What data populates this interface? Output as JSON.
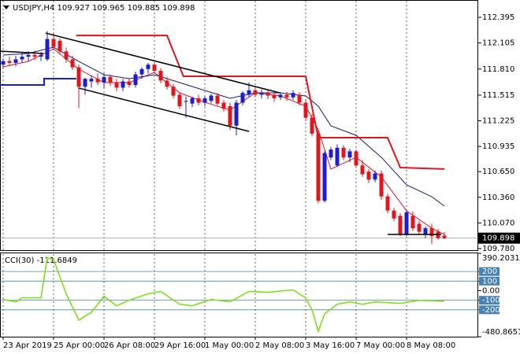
{
  "chart_data": [
    {
      "type": "candlestick",
      "symbol": "USDJPY,H4",
      "up_color": "#1c1cd6",
      "down_color": "#e3141c",
      "xlim": [
        -0.5,
        75.375
      ],
      "ylim": [
        109.762,
        112.591
      ],
      "yticks": [
        112.395,
        112.105,
        {
          "value": 111.81,
          "label": "111.810"
        },
        111.515,
        111.225,
        110.935,
        {
          "value": 110.65,
          "label": "110.650"
        },
        {
          "value": 110.36,
          "label": "110.360"
        },
        {
          "value": 110.07,
          "label": "110.070"
        },
        {
          "value": 109.78,
          "label": "109.780"
        }
      ],
      "ohlc": [
        [
          111.86,
          111.93,
          111.82,
          111.9
        ],
        [
          111.9,
          111.95,
          111.85,
          111.88
        ],
        [
          111.88,
          111.96,
          111.84,
          111.92
        ],
        [
          111.92,
          111.99,
          111.88,
          111.95
        ],
        [
          111.95,
          112.01,
          111.9,
          111.97
        ],
        [
          111.97,
          112.02,
          111.91,
          111.95
        ],
        [
          111.95,
          112.0,
          111.9,
          111.97
        ],
        [
          111.92,
          112.24,
          111.9,
          112.15
        ],
        [
          112.15,
          112.22,
          112.02,
          112.06
        ],
        [
          112.13,
          112.16,
          111.98,
          112.01
        ],
        [
          112.01,
          112.05,
          111.88,
          111.92
        ],
        [
          111.92,
          111.96,
          111.8,
          111.83
        ],
        [
          111.83,
          111.86,
          111.37,
          111.61
        ],
        [
          111.61,
          111.71,
          111.52,
          111.7
        ],
        [
          111.67,
          111.74,
          111.6,
          111.7
        ],
        [
          111.7,
          111.76,
          111.63,
          111.66
        ],
        [
          111.66,
          111.76,
          111.6,
          111.72
        ],
        [
          111.72,
          111.75,
          111.62,
          111.66
        ],
        [
          111.66,
          111.7,
          111.56,
          111.6
        ],
        [
          111.6,
          111.7,
          111.56,
          111.67
        ],
        [
          111.67,
          111.7,
          111.6,
          111.63
        ],
        [
          111.63,
          111.78,
          111.6,
          111.75
        ],
        [
          111.75,
          111.83,
          111.7,
          111.81
        ],
        [
          111.81,
          111.88,
          111.76,
          111.86
        ],
        [
          111.86,
          111.89,
          111.76,
          111.79
        ],
        [
          111.79,
          111.82,
          111.65,
          111.68
        ],
        [
          111.68,
          111.72,
          111.58,
          111.61
        ],
        [
          111.61,
          111.64,
          111.48,
          111.51
        ],
        [
          111.52,
          111.55,
          111.36,
          111.39
        ],
        [
          111.44,
          111.5,
          111.26,
          111.45
        ],
        [
          111.42,
          111.5,
          111.38,
          111.48
        ],
        [
          111.48,
          111.52,
          111.4,
          111.43
        ],
        [
          111.43,
          111.5,
          111.39,
          111.48
        ],
        [
          111.45,
          111.53,
          111.42,
          111.51
        ],
        [
          111.51,
          111.54,
          111.4,
          111.42
        ],
        [
          111.43,
          111.46,
          111.33,
          111.36
        ],
        [
          111.39,
          111.43,
          111.12,
          111.17
        ],
        [
          111.17,
          111.46,
          111.06,
          111.43
        ],
        [
          111.43,
          111.56,
          111.4,
          111.54
        ],
        [
          111.52,
          111.66,
          111.49,
          111.57
        ],
        [
          111.57,
          111.6,
          111.49,
          111.52
        ],
        [
          111.52,
          111.58,
          111.48,
          111.54
        ],
        [
          111.54,
          111.57,
          111.47,
          111.51
        ],
        [
          111.52,
          111.55,
          111.44,
          111.48
        ],
        [
          111.49,
          111.55,
          111.46,
          111.52
        ],
        [
          111.52,
          111.55,
          111.45,
          111.49
        ],
        [
          111.49,
          111.57,
          111.46,
          111.54
        ],
        [
          111.52,
          111.55,
          111.4,
          111.43
        ],
        [
          111.43,
          111.47,
          111.22,
          111.26
        ],
        [
          111.26,
          111.3,
          111.05,
          111.08
        ],
        [
          111.08,
          111.12,
          110.29,
          110.32
        ],
        [
          110.32,
          110.88,
          110.3,
          110.86
        ],
        [
          110.81,
          110.93,
          110.78,
          110.9
        ],
        [
          110.72,
          110.96,
          110.7,
          110.92
        ],
        [
          110.92,
          110.95,
          110.78,
          110.81
        ],
        [
          110.81,
          110.91,
          110.76,
          110.88
        ],
        [
          110.88,
          110.9,
          110.69,
          110.72
        ],
        [
          110.72,
          110.78,
          110.59,
          110.62
        ],
        [
          110.65,
          110.68,
          110.52,
          110.56
        ],
        [
          110.56,
          110.66,
          110.53,
          110.63
        ],
        [
          110.63,
          110.66,
          110.33,
          110.37
        ],
        [
          110.37,
          110.4,
          110.18,
          110.21
        ],
        [
          110.21,
          110.24,
          110.09,
          110.12
        ],
        [
          110.15,
          110.18,
          109.92,
          109.94
        ],
        [
          109.94,
          110.21,
          109.92,
          110.19
        ],
        [
          110.15,
          110.2,
          109.98,
          110.01
        ],
        [
          110.06,
          110.09,
          109.94,
          109.97
        ],
        [
          109.94,
          110.03,
          109.9,
          110.01
        ],
        [
          110.01,
          110.06,
          109.83,
          109.92
        ],
        [
          109.97,
          110.0,
          109.88,
          109.9
        ],
        [
          109.927,
          109.965,
          109.885,
          109.898
        ]
      ],
      "lines": [
        {
          "color": "#e3141c",
          "width": 1,
          "x": [
            0,
            4,
            8,
            12,
            16,
            20,
            24,
            28,
            32,
            36,
            40,
            44,
            48,
            50,
            52,
            56,
            60,
            64,
            68,
            70
          ],
          "values": [
            111.835,
            111.897,
            112.039,
            111.808,
            111.657,
            111.657,
            111.772,
            111.541,
            111.434,
            111.346,
            111.541,
            111.506,
            111.39,
            111.123,
            110.679,
            110.812,
            110.59,
            110.207,
            110.011,
            109.94
          ]
        },
        {
          "color": "#1a1a7a",
          "width": 1,
          "x": [
            0,
            4,
            8,
            12,
            16,
            20,
            24,
            28,
            32,
            36,
            40,
            44,
            48,
            50,
            52,
            56,
            60,
            64,
            68,
            70
          ],
          "values": [
            111.968,
            111.986,
            112.057,
            111.897,
            111.746,
            111.701,
            111.746,
            111.657,
            111.568,
            111.479,
            111.541,
            111.541,
            111.506,
            111.39,
            111.168,
            111.061,
            110.812,
            110.501,
            110.367,
            110.26
          ]
        },
        {
          "color": "#e3141c",
          "width": 2,
          "x": [
            11.6,
            26,
            28.6,
            48,
            50,
            61,
            63,
            70
          ],
          "values": [
            112.19,
            112.19,
            111.728,
            111.728,
            111.034,
            111.034,
            110.696,
            110.679
          ]
        },
        {
          "color": "#1c1cd6",
          "width": 2,
          "x": [
            -0.5,
            6.5,
            6.5,
            11.6
          ],
          "values": [
            111.63,
            111.63,
            111.701,
            111.701
          ]
        }
      ],
      "trendlines": [
        {
          "x": [
            6.75,
            43.875
          ],
          "values": [
            112.217,
            111.541
          ]
        },
        {
          "x": [
            12,
            39
          ],
          "values": [
            111.595,
            111.105
          ]
        },
        {
          "x": [
            -0.5,
            6.375
          ],
          "values": [
            112.013,
            111.986
          ]
        },
        {
          "x": [
            61,
            69.5
          ],
          "values": [
            109.94,
            109.94
          ]
        }
      ],
      "trendline_color": "#000000"
    },
    {
      "type": "line",
      "title": "CCI(30)",
      "color": "#7ee01a",
      "level_color": "#4682b4",
      "xlim": [
        -0.5,
        75.375
      ],
      "ylim": [
        -480.8651,
        390.2031
      ],
      "yticks": [
        390.2031,
        200,
        100,
        {
          "value": 0,
          "label": "0.00"
        },
        -100,
        -200,
        -480.8651
      ],
      "levels": [
        200,
        100,
        -100,
        -200
      ],
      "x": [
        0,
        2,
        3,
        6,
        7,
        8,
        10,
        12,
        14,
        16,
        18,
        20,
        23,
        25,
        28,
        30,
        33,
        36,
        39,
        42,
        46,
        48,
        49,
        50,
        51,
        53,
        55,
        57,
        59,
        63,
        66,
        70
      ],
      "values": [
        -92,
        -117,
        -75,
        -75,
        342,
        325,
        -33,
        -308,
        -225,
        -58,
        -158,
        -100,
        -33,
        -8,
        -142,
        -158,
        -92,
        -117,
        -8,
        -17,
        8,
        -75,
        -200,
        -425,
        -242,
        -142,
        -117,
        -142,
        -117,
        -133,
        -100,
        -111.6849
      ],
      "xticks": [
        {
          "value": 0,
          "label": "23 Apr 2019"
        },
        {
          "value": 8,
          "label": "25 Apr 00:00"
        },
        {
          "value": 16,
          "label": "26 Apr 08:00"
        },
        {
          "value": 24,
          "label": "29 Apr 16:00"
        },
        {
          "value": 32,
          "label": "1 May 00:00"
        },
        {
          "value": 40,
          "label": "2 May 08:00"
        },
        {
          "value": 48,
          "label": "3 May 16:00"
        },
        {
          "value": 56,
          "label": "7 May 00:00"
        },
        {
          "value": 64,
          "label": "8 May 08:00"
        }
      ]
    }
  ]
}
